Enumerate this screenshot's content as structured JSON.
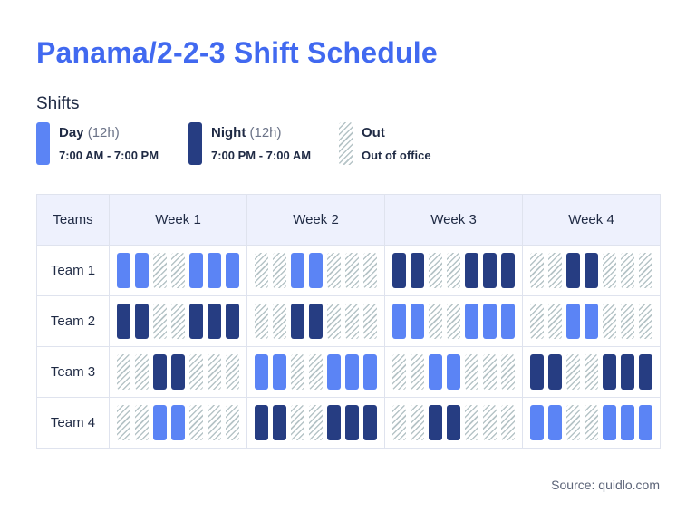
{
  "title": "Panama/2-2-3 Shift Schedule",
  "shifts_heading": "Shifts",
  "legend": [
    {
      "key": "D",
      "name": "Day",
      "hours": "(12h)",
      "detail": "7:00 AM - 7:00 PM",
      "color": "#5b84f5"
    },
    {
      "key": "N",
      "name": "Night",
      "hours": "(12h)",
      "detail": "7:00 PM - 7:00 AM",
      "color": "#263d82"
    },
    {
      "key": "O",
      "name": "Out",
      "hours": "",
      "detail": "Out of office",
      "color": "#b6c4c7"
    }
  ],
  "table": {
    "corner_header": "Teams",
    "weeks": [
      "Week 1",
      "Week 2",
      "Week 3",
      "Week 4"
    ],
    "teams": [
      {
        "name": "Team 1",
        "weeks": [
          "DDOODDD",
          "OODDOOO",
          "NNOONNN",
          "OONNOOO"
        ]
      },
      {
        "name": "Team 2",
        "weeks": [
          "NNOONNN",
          "OONNOOO",
          "DDOODDD",
          "OODDOOO"
        ]
      },
      {
        "name": "Team 3",
        "weeks": [
          "OONNOOO",
          "DDOODDD",
          "OODDOOO",
          "NNOONNN"
        ]
      },
      {
        "name": "Team 4",
        "weeks": [
          "OODDOOO",
          "NNOONNN",
          "OONNOOO",
          "DDOODDD"
        ]
      }
    ]
  },
  "source": "Source: quidlo.com"
}
